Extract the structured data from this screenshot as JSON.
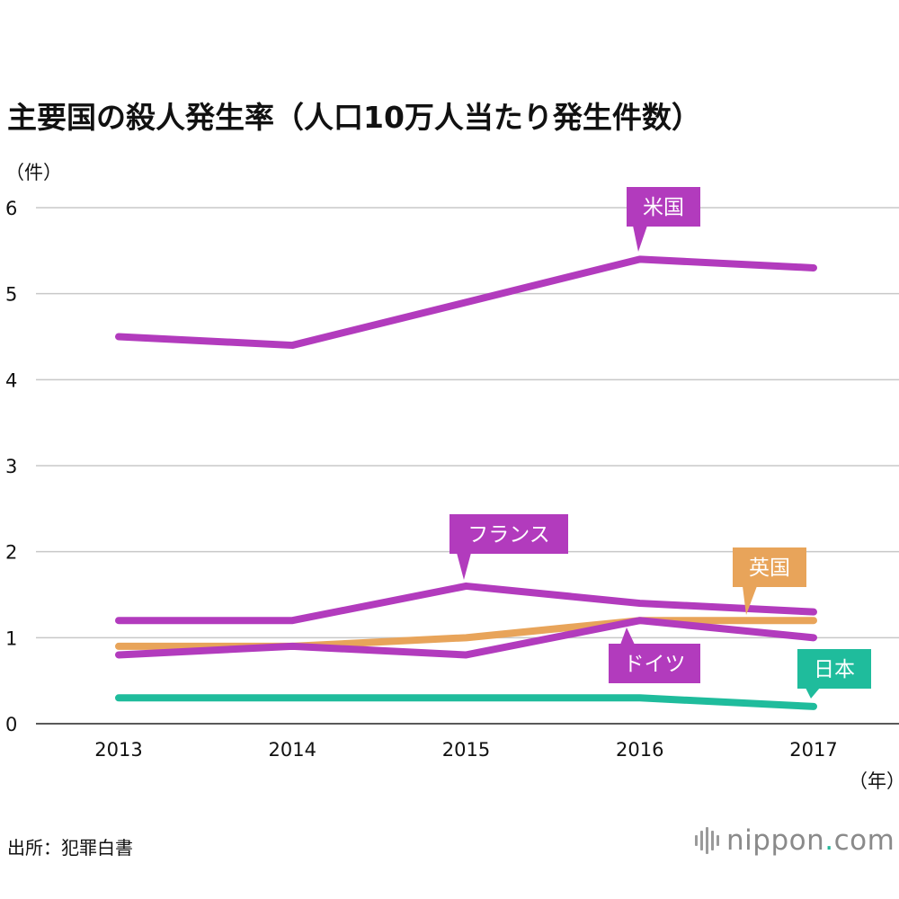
{
  "title": "主要国の殺人発生率（人口10万人当たり発生件数）",
  "y_unit": "（件）",
  "x_unit": "（年）",
  "source": "出所：犯罪白書",
  "logo": {
    "main": "nippon",
    "dot": ".",
    "suffix": "com"
  },
  "chart_data": {
    "type": "line",
    "x": [
      "2013",
      "2014",
      "2015",
      "2016",
      "2017"
    ],
    "ylim": [
      0,
      6
    ],
    "yticks": [
      0,
      1,
      2,
      3,
      4,
      5,
      6
    ],
    "grid": true,
    "series": [
      {
        "name": "米国",
        "values": [
          4.5,
          4.4,
          4.9,
          5.4,
          5.3
        ],
        "color": "#b23bbd"
      },
      {
        "name": "フランス",
        "values": [
          1.2,
          1.2,
          1.6,
          1.4,
          1.3
        ],
        "color": "#b23bbd"
      },
      {
        "name": "英国",
        "values": [
          0.9,
          0.9,
          1.0,
          1.2,
          1.2
        ],
        "color": "#e8a45a"
      },
      {
        "name": "ドイツ",
        "values": [
          0.8,
          0.9,
          0.8,
          1.2,
          1.0
        ],
        "color": "#b23bbd"
      },
      {
        "name": "日本",
        "values": [
          0.3,
          0.3,
          0.3,
          0.3,
          0.2
        ],
        "color": "#1fbc9c"
      }
    ]
  }
}
